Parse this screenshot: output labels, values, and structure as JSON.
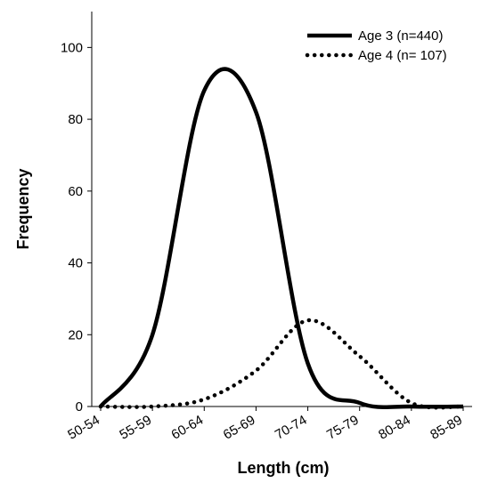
{
  "chart_data": {
    "type": "line",
    "xlabel": "Length (cm)",
    "ylabel": "Frequency",
    "categories": [
      "50-54",
      "55-59",
      "60-64",
      "65-69",
      "70-74",
      "75-79",
      "80-84",
      "85-89"
    ],
    "series": [
      {
        "name": "Age 3 (n=440)",
        "color": "#000000",
        "style": "solid",
        "values": [
          0,
          20,
          88,
          82,
          12,
          1,
          0,
          0
        ]
      },
      {
        "name": "Age 4 (n= 107)",
        "color": "#000000",
        "style": "dotted",
        "values": [
          0,
          0,
          2,
          10,
          24,
          14,
          1,
          0
        ]
      }
    ],
    "ylim": [
      0,
      110
    ],
    "yticks": [
      0,
      20,
      40,
      60,
      80,
      100
    ],
    "legend": "upper right",
    "grid": false
  }
}
